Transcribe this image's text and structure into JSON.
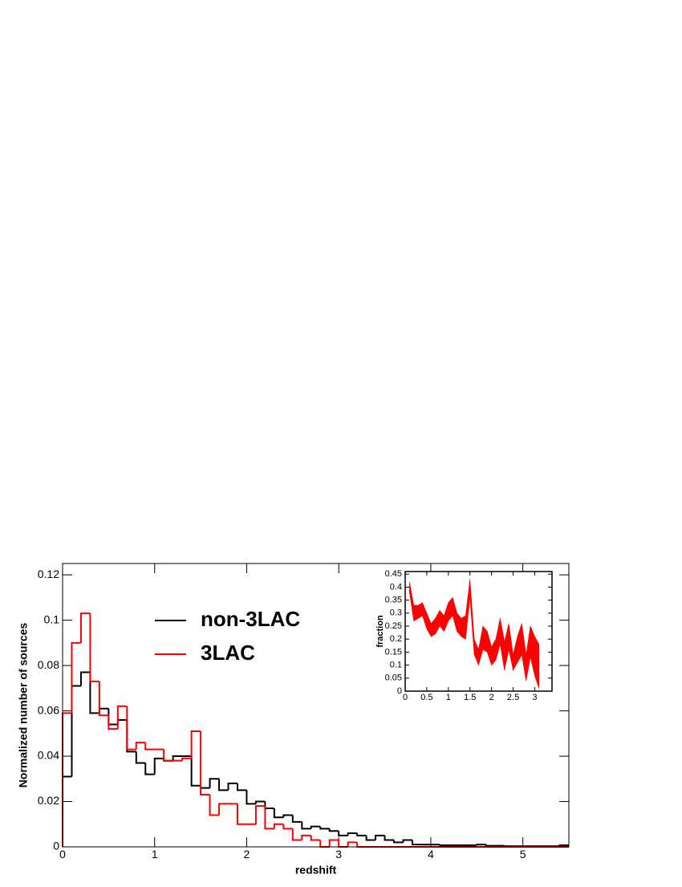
{
  "chart_data": [
    {
      "type": "histogram",
      "xlabel": "redshift",
      "ylabel": "Normalized number of sources",
      "bins": [
        0,
        0.1,
        0.2,
        0.3,
        0.4,
        0.5,
        0.6,
        0.7,
        0.8,
        0.9,
        1,
        1.1,
        1.2,
        1.3,
        1.4,
        1.5,
        1.6,
        1.7,
        1.8,
        1.9,
        2,
        2.1,
        2.2,
        2.3,
        2.4,
        2.5,
        2.6,
        2.7,
        2.8,
        2.9,
        3,
        3.1,
        3.2,
        3.3,
        3.4,
        3.5,
        3.6,
        3.7,
        3.8,
        3.9,
        4,
        4.1,
        4.2,
        4.3,
        4.4,
        4.5,
        4.6,
        4.7,
        4.8,
        4.9,
        5,
        5.1,
        5.2,
        5.3,
        5.4,
        5.5
      ],
      "series": [
        {
          "name": "non-3LAC",
          "color": "#000000",
          "values": [
            0.031,
            0.071,
            0.077,
            0.059,
            0.061,
            0.054,
            0.056,
            0.042,
            0.037,
            0.032,
            0.039,
            0.038,
            0.04,
            0.04,
            0.027,
            0.026,
            0.03,
            0.025,
            0.028,
            0.025,
            0.019,
            0.02,
            0.017,
            0.013,
            0.014,
            0.011,
            0.008,
            0.009,
            0.008,
            0.007,
            0.005,
            0.006,
            0.005,
            0.003,
            0.005,
            0.003,
            0.002,
            0.003,
            0.001,
            0.001,
            0.001,
            0.0007,
            0.0007,
            0.0007,
            0.0007,
            0.001,
            0.0005,
            0.0005,
            0.0003,
            0.0003,
            0.0003,
            0.0003,
            0.0003,
            0.0003,
            0.0007
          ]
        },
        {
          "name": "3LAC",
          "color": "#ff0000",
          "values": [
            0.059,
            0.09,
            0.103,
            0.073,
            0.058,
            0.052,
            0.062,
            0.043,
            0.046,
            0.043,
            0.043,
            0.038,
            0.038,
            0.039,
            0.051,
            0.023,
            0.014,
            0.019,
            0.019,
            0.01,
            0.01,
            0.018,
            0.008,
            0.01,
            0.008,
            0.003,
            0.005,
            0.003,
            0,
            0.003,
            0,
            0.002,
            0,
            0,
            0,
            0,
            0,
            0,
            0,
            0,
            0,
            0,
            0,
            0,
            0,
            0,
            0,
            0,
            0,
            0,
            0,
            0,
            0,
            0,
            0
          ]
        }
      ],
      "xlim": [
        0,
        5.5
      ],
      "ylim": [
        0,
        0.125
      ],
      "xticks": [
        0,
        1,
        2,
        3,
        4,
        5
      ],
      "yticks": [
        0,
        0.02,
        0.04,
        0.06,
        0.08,
        0.1,
        0.12
      ],
      "legend": "upper left"
    },
    {
      "type": "band",
      "ylabel": "fraction",
      "x": [
        0.1,
        0.2,
        0.3,
        0.4,
        0.5,
        0.6,
        0.7,
        0.8,
        0.9,
        1,
        1.1,
        1.2,
        1.3,
        1.4,
        1.5,
        1.6,
        1.7,
        1.8,
        1.9,
        2,
        2.1,
        2.2,
        2.3,
        2.4,
        2.5,
        2.6,
        2.7,
        2.8,
        2.9,
        3,
        3.1
      ],
      "series": [
        {
          "color": "#ff0000",
          "upper": [
            0.42,
            0.33,
            0.33,
            0.34,
            0.3,
            0.26,
            0.28,
            0.31,
            0.29,
            0.34,
            0.36,
            0.3,
            0.28,
            0.29,
            0.43,
            0.2,
            0.16,
            0.25,
            0.23,
            0.17,
            0.2,
            0.28,
            0.19,
            0.26,
            0.14,
            0.21,
            0.26,
            0.14,
            0.25,
            0.21,
            0.18
          ],
          "lower": [
            0.38,
            0.27,
            0.28,
            0.29,
            0.24,
            0.21,
            0.22,
            0.25,
            0.23,
            0.27,
            0.29,
            0.23,
            0.21,
            0.2,
            0.36,
            0.14,
            0.1,
            0.16,
            0.15,
            0.1,
            0.12,
            0.18,
            0.08,
            0.16,
            0.08,
            0.11,
            0.14,
            0.04,
            0.13,
            0.06,
            0.01
          ]
        }
      ],
      "xlim": [
        0,
        3.4
      ],
      "ylim": [
        0,
        0.46
      ],
      "xticks": [
        0,
        0.5,
        1,
        1.5,
        2,
        2.5,
        3
      ],
      "yticks": [
        0,
        0.05,
        0.1,
        0.15,
        0.2,
        0.25,
        0.3,
        0.35,
        0.4,
        0.45
      ]
    }
  ]
}
